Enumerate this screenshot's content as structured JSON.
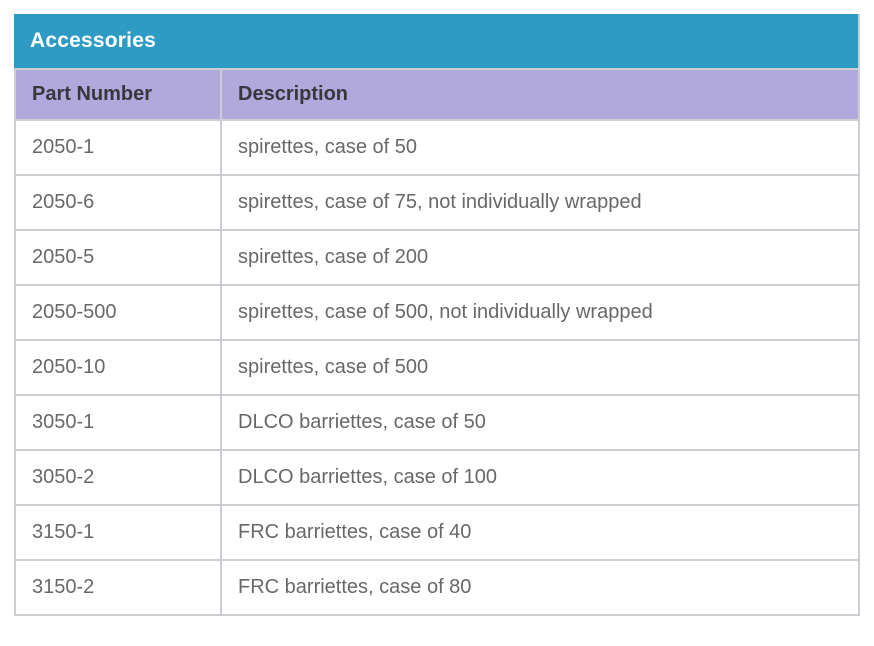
{
  "table": {
    "title": "Accessories",
    "columns": [
      "Part Number",
      "Description"
    ],
    "rows": [
      {
        "part_number": "2050-1",
        "description": "spirettes, case of 50"
      },
      {
        "part_number": "2050-6",
        "description": "spirettes, case of 75, not individually wrapped"
      },
      {
        "part_number": "2050-5",
        "description": "spirettes, case of 200"
      },
      {
        "part_number": "2050-500",
        "description": "spirettes, case of 500, not individually wrapped"
      },
      {
        "part_number": "2050-10",
        "description": "spirettes, case of 500"
      },
      {
        "part_number": "3050-1",
        "description": "DLCO barriettes, case of 50"
      },
      {
        "part_number": "3050-2",
        "description": "DLCO barriettes, case of 100"
      },
      {
        "part_number": "3150-1",
        "description": "FRC barriettes, case of 40"
      },
      {
        "part_number": "3150-2",
        "description": "FRC barriettes, case of 80"
      }
    ],
    "colors": {
      "title_bg": "#2e9bc4",
      "header_bg": "#b1a9dc",
      "border": "#cbced2",
      "title_text": "#ffffff",
      "header_text": "#37373d",
      "body_text": "#68686a"
    }
  },
  "chart_data": {
    "type": "table",
    "title": "Accessories",
    "columns": [
      "Part Number",
      "Description"
    ],
    "rows": [
      [
        "2050-1",
        "spirettes, case of 50"
      ],
      [
        "2050-6",
        "spirettes, case of 75, not individually wrapped"
      ],
      [
        "2050-5",
        "spirettes, case of 200"
      ],
      [
        "2050-500",
        "spirettes, case of 500, not individually wrapped"
      ],
      [
        "2050-10",
        "spirettes, case of 500"
      ],
      [
        "3050-1",
        "DLCO barriettes, case of 50"
      ],
      [
        "3050-2",
        "DLCO barriettes, case of 100"
      ],
      [
        "3150-1",
        "FRC barriettes, case of 40"
      ],
      [
        "3150-2",
        "FRC barriettes, case of 80"
      ]
    ]
  }
}
